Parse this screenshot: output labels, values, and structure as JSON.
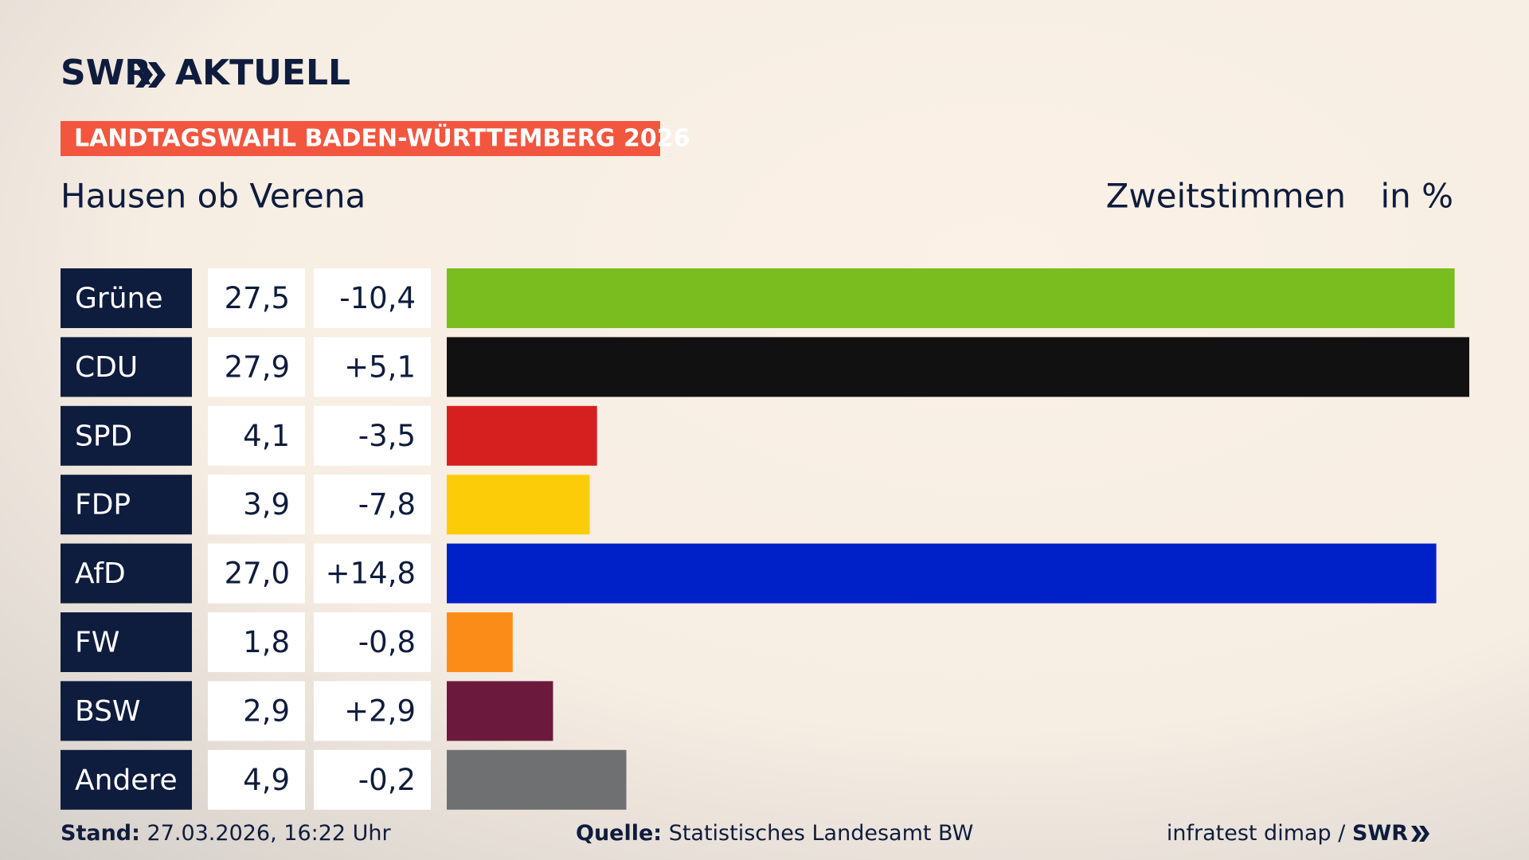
{
  "brand": {
    "name": "SWR",
    "product": "AKTUELL"
  },
  "chart_data": {
    "type": "bar",
    "title": "LANDTAGSWAHL BADEN-WÜRTTEMBERG 2026",
    "subtitle": "Hausen ob Verena",
    "value_title": "Zweitstimmen",
    "unit": "in %",
    "categories": [
      "Grüne",
      "CDU",
      "SPD",
      "FDP",
      "AfD",
      "FW",
      "BSW",
      "Andere"
    ],
    "values": [
      27.5,
      27.9,
      4.1,
      3.9,
      27.0,
      1.8,
      2.9,
      4.9
    ],
    "value_labels": [
      "27,5",
      "27,9",
      "4,1",
      "3,9",
      "27,0",
      "1,8",
      "2,9",
      "4,9"
    ],
    "changes": [
      "-10,4",
      "+5,1",
      "-3,5",
      "-7,8",
      "+14,8",
      "-0,8",
      "+2,9",
      "-0,2"
    ],
    "colors": [
      "#7abd1e",
      "#111111",
      "#d62020",
      "#fdcc08",
      "#0020c8",
      "#fc8c18",
      "#6b1a3e",
      "#6f7071"
    ]
  },
  "footer": {
    "date_label": "Stand:",
    "date": "27.03.2026, 16:22 Uhr",
    "source_label": "Quelle:",
    "source": "Statistisches Landesamt BW",
    "credit": "infratest dimap /",
    "credit_brand": "SWR"
  }
}
